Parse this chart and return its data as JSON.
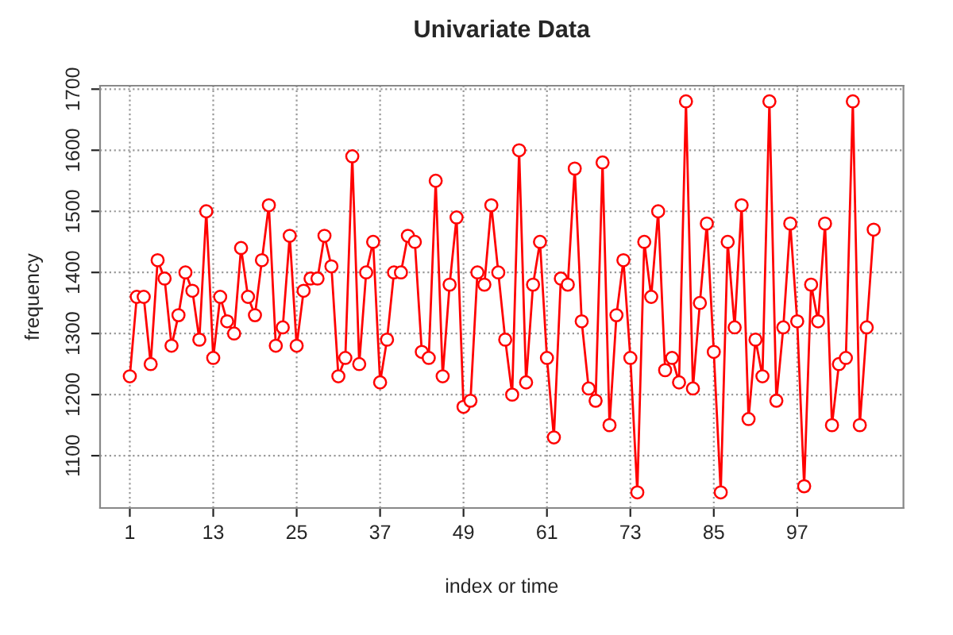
{
  "chart_data": {
    "type": "line",
    "title": "Univariate Data",
    "xlabel": "index or time",
    "ylabel": "frequency",
    "x": [
      1,
      2,
      3,
      4,
      5,
      6,
      7,
      8,
      9,
      10,
      11,
      12,
      13,
      14,
      15,
      16,
      17,
      18,
      19,
      20,
      21,
      22,
      23,
      24,
      25,
      26,
      27,
      28,
      29,
      30,
      31,
      32,
      33,
      34,
      35,
      36,
      37,
      38,
      39,
      40,
      41,
      42,
      43,
      44,
      45,
      46,
      47,
      48,
      49,
      50,
      51,
      52,
      53,
      54,
      55,
      56,
      57,
      58,
      59,
      60,
      61,
      62,
      63,
      64,
      65,
      66,
      67,
      68,
      69,
      70,
      71,
      72,
      73,
      74,
      75,
      76,
      77,
      78,
      79,
      80,
      81,
      82,
      83,
      84,
      85,
      86,
      87,
      88,
      89,
      90,
      91,
      92,
      93,
      94,
      95,
      96,
      97,
      98,
      99,
      100,
      101,
      102,
      103,
      104,
      105,
      106,
      107,
      108
    ],
    "series": [
      {
        "color": "#ff0000",
        "values": [
          1230,
          1360,
          1360,
          1250,
          1420,
          1390,
          1280,
          1330,
          1400,
          1370,
          1290,
          1500,
          1260,
          1360,
          1320,
          1300,
          1440,
          1360,
          1330,
          1420,
          1510,
          1280,
          1310,
          1460,
          1280,
          1370,
          1390,
          1390,
          1460,
          1410,
          1230,
          1260,
          1590,
          1250,
          1400,
          1450,
          1220,
          1290,
          1400,
          1400,
          1460,
          1450,
          1270,
          1260,
          1550,
          1230,
          1380,
          1490,
          1180,
          1190,
          1400,
          1380,
          1510,
          1400,
          1290,
          1200,
          1600,
          1220,
          1380,
          1450,
          1260,
          1130,
          1390,
          1380,
          1570,
          1320,
          1210,
          1190,
          1580,
          1150,
          1330,
          1420,
          1260,
          1040,
          1450,
          1360,
          1500,
          1240,
          1260,
          1220,
          1680,
          1210,
          1350,
          1480,
          1270,
          1040,
          1450,
          1310,
          1510,
          1160,
          1290,
          1230,
          1680,
          1190,
          1310,
          1480,
          1320,
          1050,
          1380,
          1320,
          1480,
          1150,
          1250,
          1260,
          1680,
          1150,
          1310,
          1470
        ]
      }
    ],
    "xlim": [
      -3.28,
      112.28
    ],
    "ylim": [
      1014.4,
      1705.6
    ],
    "xticks": [
      1,
      13,
      25,
      37,
      49,
      61,
      73,
      85,
      97
    ],
    "yticks": [
      1100,
      1200,
      1300,
      1400,
      1500,
      1600,
      1700
    ],
    "grid": true,
    "marker": "circle",
    "line_style": "solid"
  }
}
